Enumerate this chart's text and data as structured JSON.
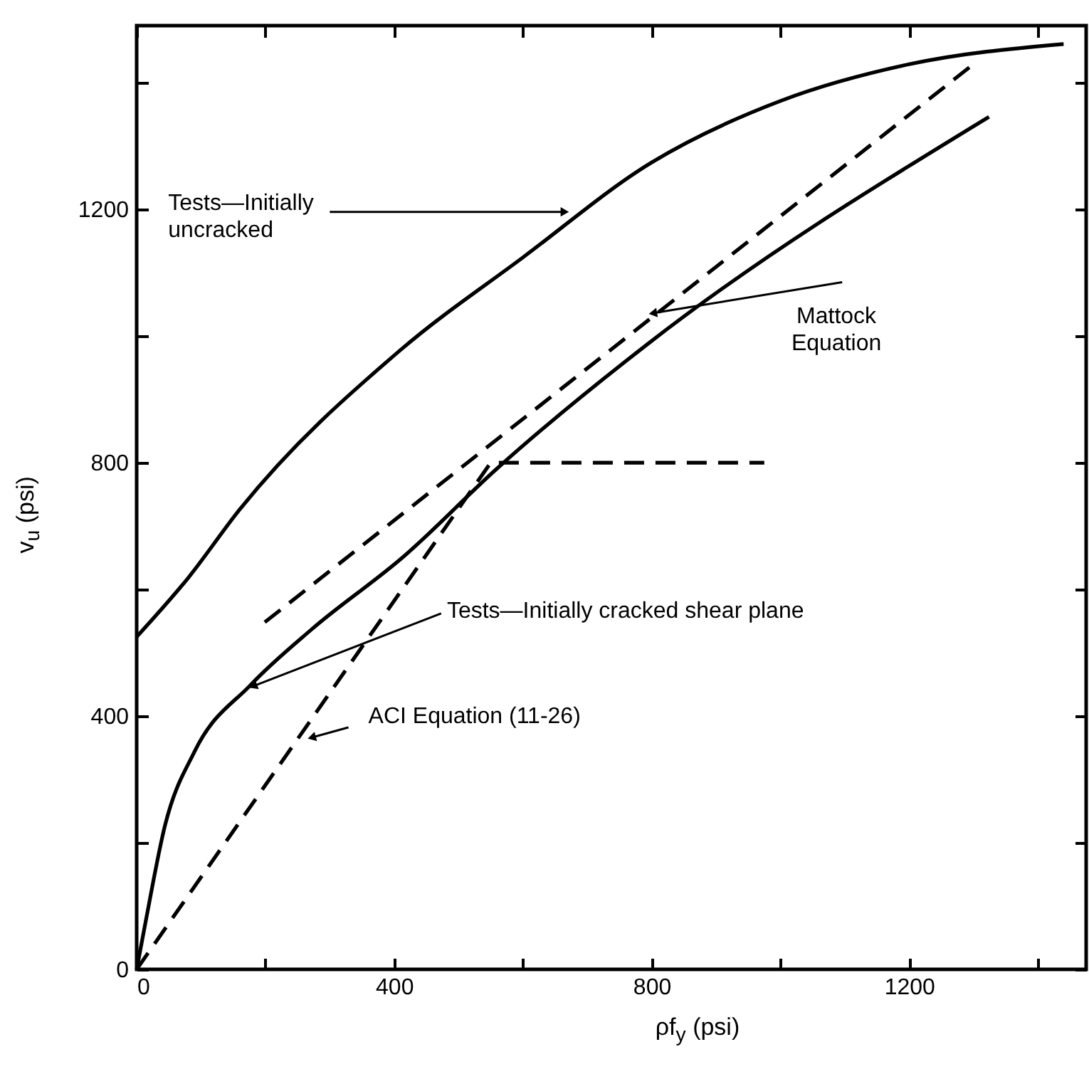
{
  "chart_data": {
    "type": "line",
    "xlabel": "ρf$_{y}$ (psi)",
    "ylabel": "v$_{u}$ (psi)",
    "xlim": [
      0,
      1475
    ],
    "ylim": [
      0,
      1490
    ],
    "xticks": [
      0,
      {
        "value": 200,
        "label": null
      },
      400,
      {
        "value": 600,
        "label": null
      },
      800,
      {
        "value": 1000,
        "label": null
      },
      1200,
      {
        "value": 1400,
        "label": null
      }
    ],
    "yticks": [
      0,
      {
        "value": 200,
        "label": null
      },
      400,
      {
        "value": 600,
        "label": null
      },
      800,
      {
        "value": 1000,
        "label": null
      },
      1200,
      {
        "value": 1400,
        "label": null
      }
    ],
    "grid": false,
    "marker": "none",
    "series": [
      {
        "color": "#000000",
        "line_style": "solid",
        "x": [
          0,
          80,
          160,
          410,
          600,
          800,
          1000,
          1200,
          1440
        ],
        "values": [
          525,
          618,
          726,
          978,
          1124,
          1274,
          1371,
          1429,
          1461
        ]
      },
      {
        "color": "#000000",
        "line_style": "solid",
        "x": [
          0,
          15,
          44,
          90,
          177,
          272,
          415,
          559,
          796,
          1324
        ],
        "values": [
          0,
          81,
          227,
          344,
          449,
          537,
          652,
          790,
          989,
          1346
        ]
      },
      {
        "color": "#000000",
        "line_style": "dashed",
        "x": [
          199,
          1306
        ],
        "values": [
          548,
          1434
        ]
      },
      {
        "color": "#000000",
        "line_style": "dashed",
        "x": [
          0,
          550,
          975
        ],
        "values": [
          0,
          800,
          800
        ]
      }
    ],
    "annotations": [
      {
        "text": "Tests—Initially uncracked",
        "x": 665,
        "y": 1196
      },
      {
        "text": "Mattock Equation",
        "x": 802,
        "y": 1036
      },
      {
        "text": "Tests—Initially cracked shear plane",
        "x": 181,
        "y": 447
      },
      {
        "text": "ACI Equation (11-26)",
        "x": 272,
        "y": 366
      }
    ]
  }
}
